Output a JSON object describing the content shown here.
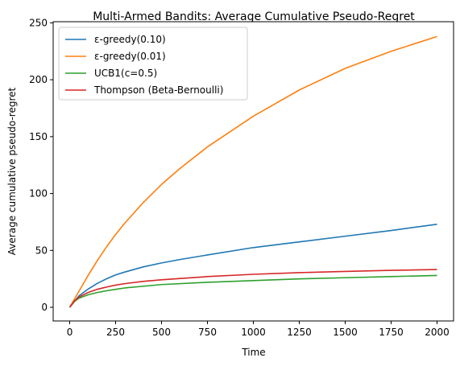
{
  "chart_data": {
    "type": "line",
    "title": "Multi-Armed Bandits: Average Cumulative Pseudo-Regret",
    "xlabel": "Time",
    "ylabel": "Average cumulative pseudo-regret",
    "xlim": [
      -90,
      2090
    ],
    "ylim": [
      -12,
      251
    ],
    "xticks": [
      0,
      250,
      500,
      750,
      1000,
      1250,
      1500,
      1750,
      2000
    ],
    "yticks": [
      0,
      50,
      100,
      150,
      200,
      250
    ],
    "grid": false,
    "legend_position": "top-left",
    "series": [
      {
        "name": "ε-greedy(0.10)",
        "color": "#1f77b4",
        "points": [
          [
            0,
            0
          ],
          [
            25,
            5
          ],
          [
            50,
            10
          ],
          [
            100,
            16
          ],
          [
            150,
            21
          ],
          [
            200,
            25
          ],
          [
            250,
            28.5
          ],
          [
            300,
            31
          ],
          [
            400,
            35.5
          ],
          [
            500,
            39
          ],
          [
            600,
            42
          ],
          [
            750,
            46
          ],
          [
            1000,
            52.5
          ],
          [
            1250,
            57.5
          ],
          [
            1500,
            62.5
          ],
          [
            1750,
            67.5
          ],
          [
            2000,
            73
          ]
        ]
      },
      {
        "name": "ε-greedy(0.01)",
        "color": "#ff7f0e",
        "points": [
          [
            0,
            0
          ],
          [
            50,
            14
          ],
          [
            100,
            28
          ],
          [
            150,
            41
          ],
          [
            200,
            53
          ],
          [
            250,
            64
          ],
          [
            300,
            74
          ],
          [
            400,
            92
          ],
          [
            500,
            108
          ],
          [
            600,
            122
          ],
          [
            750,
            141
          ],
          [
            1000,
            168
          ],
          [
            1250,
            191
          ],
          [
            1500,
            210
          ],
          [
            1750,
            225
          ],
          [
            2000,
            238
          ]
        ]
      },
      {
        "name": "UCB1(c=0.5)",
        "color": "#2ca02c",
        "points": [
          [
            0,
            0
          ],
          [
            25,
            5
          ],
          [
            50,
            8
          ],
          [
            100,
            11
          ],
          [
            150,
            13
          ],
          [
            200,
            14.5
          ],
          [
            250,
            15.8
          ],
          [
            300,
            17
          ],
          [
            400,
            18.5
          ],
          [
            500,
            20
          ],
          [
            750,
            22
          ],
          [
            1000,
            23.5
          ],
          [
            1250,
            25
          ],
          [
            1500,
            26
          ],
          [
            1750,
            27
          ],
          [
            2000,
            28
          ]
        ]
      },
      {
        "name": "Thompson (Beta-Bernoulli)",
        "color": "#d62728",
        "points": [
          [
            0,
            0
          ],
          [
            25,
            5.5
          ],
          [
            50,
            9
          ],
          [
            100,
            13
          ],
          [
            150,
            15.8
          ],
          [
            200,
            17.8
          ],
          [
            250,
            19.5
          ],
          [
            300,
            20.8
          ],
          [
            400,
            22.8
          ],
          [
            500,
            24.2
          ],
          [
            750,
            27
          ],
          [
            1000,
            29
          ],
          [
            1250,
            30.5
          ],
          [
            1500,
            31.5
          ],
          [
            1750,
            32.5
          ],
          [
            2000,
            33.2
          ]
        ]
      }
    ]
  }
}
